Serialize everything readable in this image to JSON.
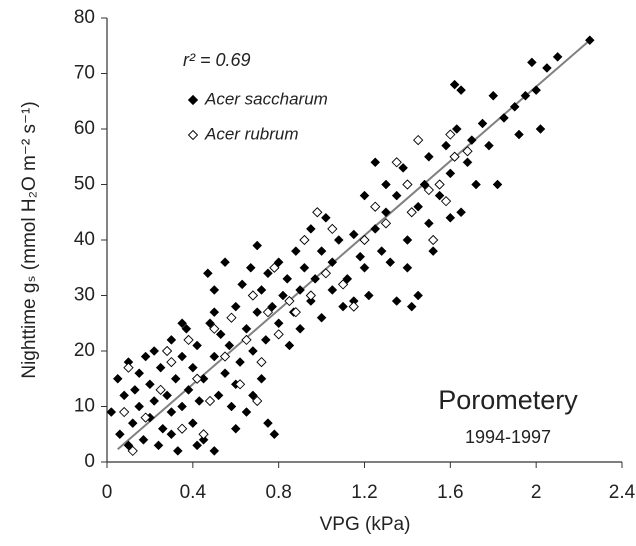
{
  "chart_data": {
    "type": "scatter",
    "x_label": "VPG (kPa)",
    "y_label": "Nighttime gₛ (mmol H₂O m⁻² s⁻¹)",
    "annotations": {
      "r2": "r² = 0.69",
      "method": "Porometery",
      "years": "1994-1997"
    },
    "xlim": [
      0,
      2.4
    ],
    "xticks": [
      0,
      0.4,
      0.8,
      1.2,
      1.6,
      2,
      2.4
    ],
    "ylim": [
      0,
      80
    ],
    "yticks": [
      0,
      10,
      20,
      30,
      40,
      50,
      60,
      70,
      80
    ],
    "fit": {
      "x": [
        0.05,
        2.25
      ],
      "y": [
        2.3,
        76
      ],
      "color": "#808080"
    },
    "series": [
      {
        "name": "Acer saccharum",
        "marker": "filled",
        "color": "#000000",
        "x": [
          0.02,
          0.05,
          0.06,
          0.08,
          0.1,
          0.1,
          0.12,
          0.13,
          0.15,
          0.15,
          0.17,
          0.18,
          0.2,
          0.2,
          0.22,
          0.22,
          0.24,
          0.25,
          0.26,
          0.28,
          0.3,
          0.3,
          0.32,
          0.33,
          0.35,
          0.35,
          0.37,
          0.38,
          0.4,
          0.4,
          0.42,
          0.43,
          0.45,
          0.45,
          0.47,
          0.48,
          0.5,
          0.5,
          0.5,
          0.52,
          0.53,
          0.55,
          0.55,
          0.57,
          0.58,
          0.6,
          0.6,
          0.62,
          0.63,
          0.65,
          0.65,
          0.67,
          0.68,
          0.7,
          0.7,
          0.72,
          0.72,
          0.74,
          0.75,
          0.75,
          0.77,
          0.78,
          0.8,
          0.8,
          0.82,
          0.84,
          0.85,
          0.87,
          0.88,
          0.9,
          0.9,
          0.92,
          0.95,
          0.95,
          0.97,
          1.0,
          1.0,
          1.02,
          1.05,
          1.05,
          1.08,
          1.1,
          1.12,
          1.15,
          1.15,
          1.18,
          1.2,
          1.2,
          1.22,
          1.25,
          1.25,
          1.28,
          1.3,
          1.3,
          1.32,
          1.35,
          1.35,
          1.38,
          1.4,
          1.4,
          1.42,
          1.45,
          1.45,
          1.48,
          1.5,
          1.5,
          1.52,
          1.55,
          1.58,
          1.6,
          1.6,
          1.62,
          1.63,
          1.65,
          1.65,
          1.68,
          1.7,
          1.72,
          1.75,
          1.78,
          1.8,
          1.82,
          1.85,
          1.9,
          1.92,
          1.95,
          1.98,
          2.0,
          2.02,
          2.05,
          2.1,
          2.25,
          0.3,
          0.42,
          0.6,
          0.68,
          0.5,
          0.35
        ],
        "values": [
          9,
          15,
          5,
          12,
          18,
          3,
          7,
          13,
          16,
          10,
          4,
          19,
          8,
          14,
          20,
          11,
          3,
          17,
          6,
          12,
          22,
          9,
          15,
          2,
          19,
          10,
          24,
          13,
          7,
          17,
          21,
          11,
          4,
          15,
          34,
          25,
          2,
          19,
          31,
          12,
          23,
          16,
          36,
          21,
          10,
          28,
          14,
          18,
          32,
          24,
          9,
          35,
          20,
          39,
          27,
          15,
          31,
          22,
          7,
          34,
          28,
          5,
          25,
          36,
          30,
          33,
          21,
          27,
          38,
          31,
          24,
          35,
          29,
          42,
          33,
          38,
          26,
          44,
          31,
          36,
          40,
          28,
          33,
          41,
          29,
          37,
          48,
          35,
          30,
          42,
          54,
          38,
          50,
          45,
          36,
          29,
          48,
          53,
          40,
          35,
          28,
          46,
          30,
          50,
          55,
          43,
          38,
          48,
          57,
          52,
          44,
          68,
          60,
          45,
          67,
          54,
          58,
          50,
          61,
          57,
          66,
          50,
          62,
          64,
          59,
          66,
          72,
          67,
          60,
          71,
          73,
          76,
          5,
          3,
          6,
          12,
          27,
          25
        ]
      },
      {
        "name": "Acer rubrum",
        "marker": "open",
        "color": "#000000",
        "x": [
          0.08,
          0.1,
          0.12,
          0.18,
          0.25,
          0.3,
          0.35,
          0.38,
          0.42,
          0.48,
          0.5,
          0.55,
          0.58,
          0.62,
          0.65,
          0.68,
          0.72,
          0.75,
          0.78,
          0.8,
          0.85,
          0.88,
          0.92,
          0.95,
          0.98,
          1.02,
          1.05,
          1.1,
          1.15,
          1.2,
          1.25,
          1.3,
          1.35,
          1.4,
          1.42,
          1.45,
          1.5,
          1.55,
          1.6,
          1.62,
          1.52,
          0.7,
          0.45,
          0.28,
          1.68,
          1.58
        ],
        "values": [
          9,
          17,
          2,
          8,
          13,
          18,
          6,
          22,
          15,
          11,
          24,
          19,
          26,
          14,
          22,
          30,
          18,
          27,
          35,
          23,
          29,
          27,
          40,
          30,
          45,
          34,
          42,
          32,
          28,
          40,
          46,
          43,
          54,
          50,
          45,
          58,
          49,
          50,
          59,
          55,
          40,
          11,
          5,
          20,
          56,
          47
        ]
      }
    ]
  }
}
